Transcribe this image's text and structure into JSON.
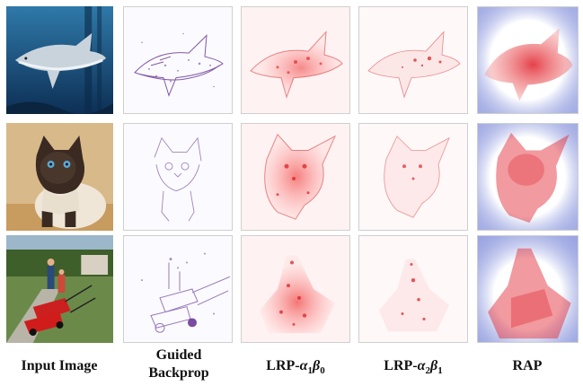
{
  "figure": {
    "columns": [
      {
        "id": "input",
        "label": "Input Image"
      },
      {
        "id": "guided",
        "label_line1": "Guided",
        "label_line2": "Backprop"
      },
      {
        "id": "lrp1",
        "label_prefix": "LRP-",
        "alpha": "α",
        "alpha_sub": "1",
        "beta": "β",
        "beta_sub": "0"
      },
      {
        "id": "lrp2",
        "label_prefix": "LRP-",
        "alpha": "α",
        "alpha_sub": "2",
        "beta": "β",
        "beta_sub": "1"
      },
      {
        "id": "rap",
        "label": "RAP"
      }
    ],
    "rows": [
      {
        "id": "shark",
        "subject": "shark"
      },
      {
        "id": "cat",
        "subject": "siamese cat"
      },
      {
        "id": "lawnmower",
        "subject": "lawn mower with children"
      }
    ],
    "colors": {
      "guided": "#5a1f8a",
      "lrp_positive": "#d7191c",
      "rap_positive": "#e0202a",
      "rap_negative": "#3b4fc4"
    }
  }
}
